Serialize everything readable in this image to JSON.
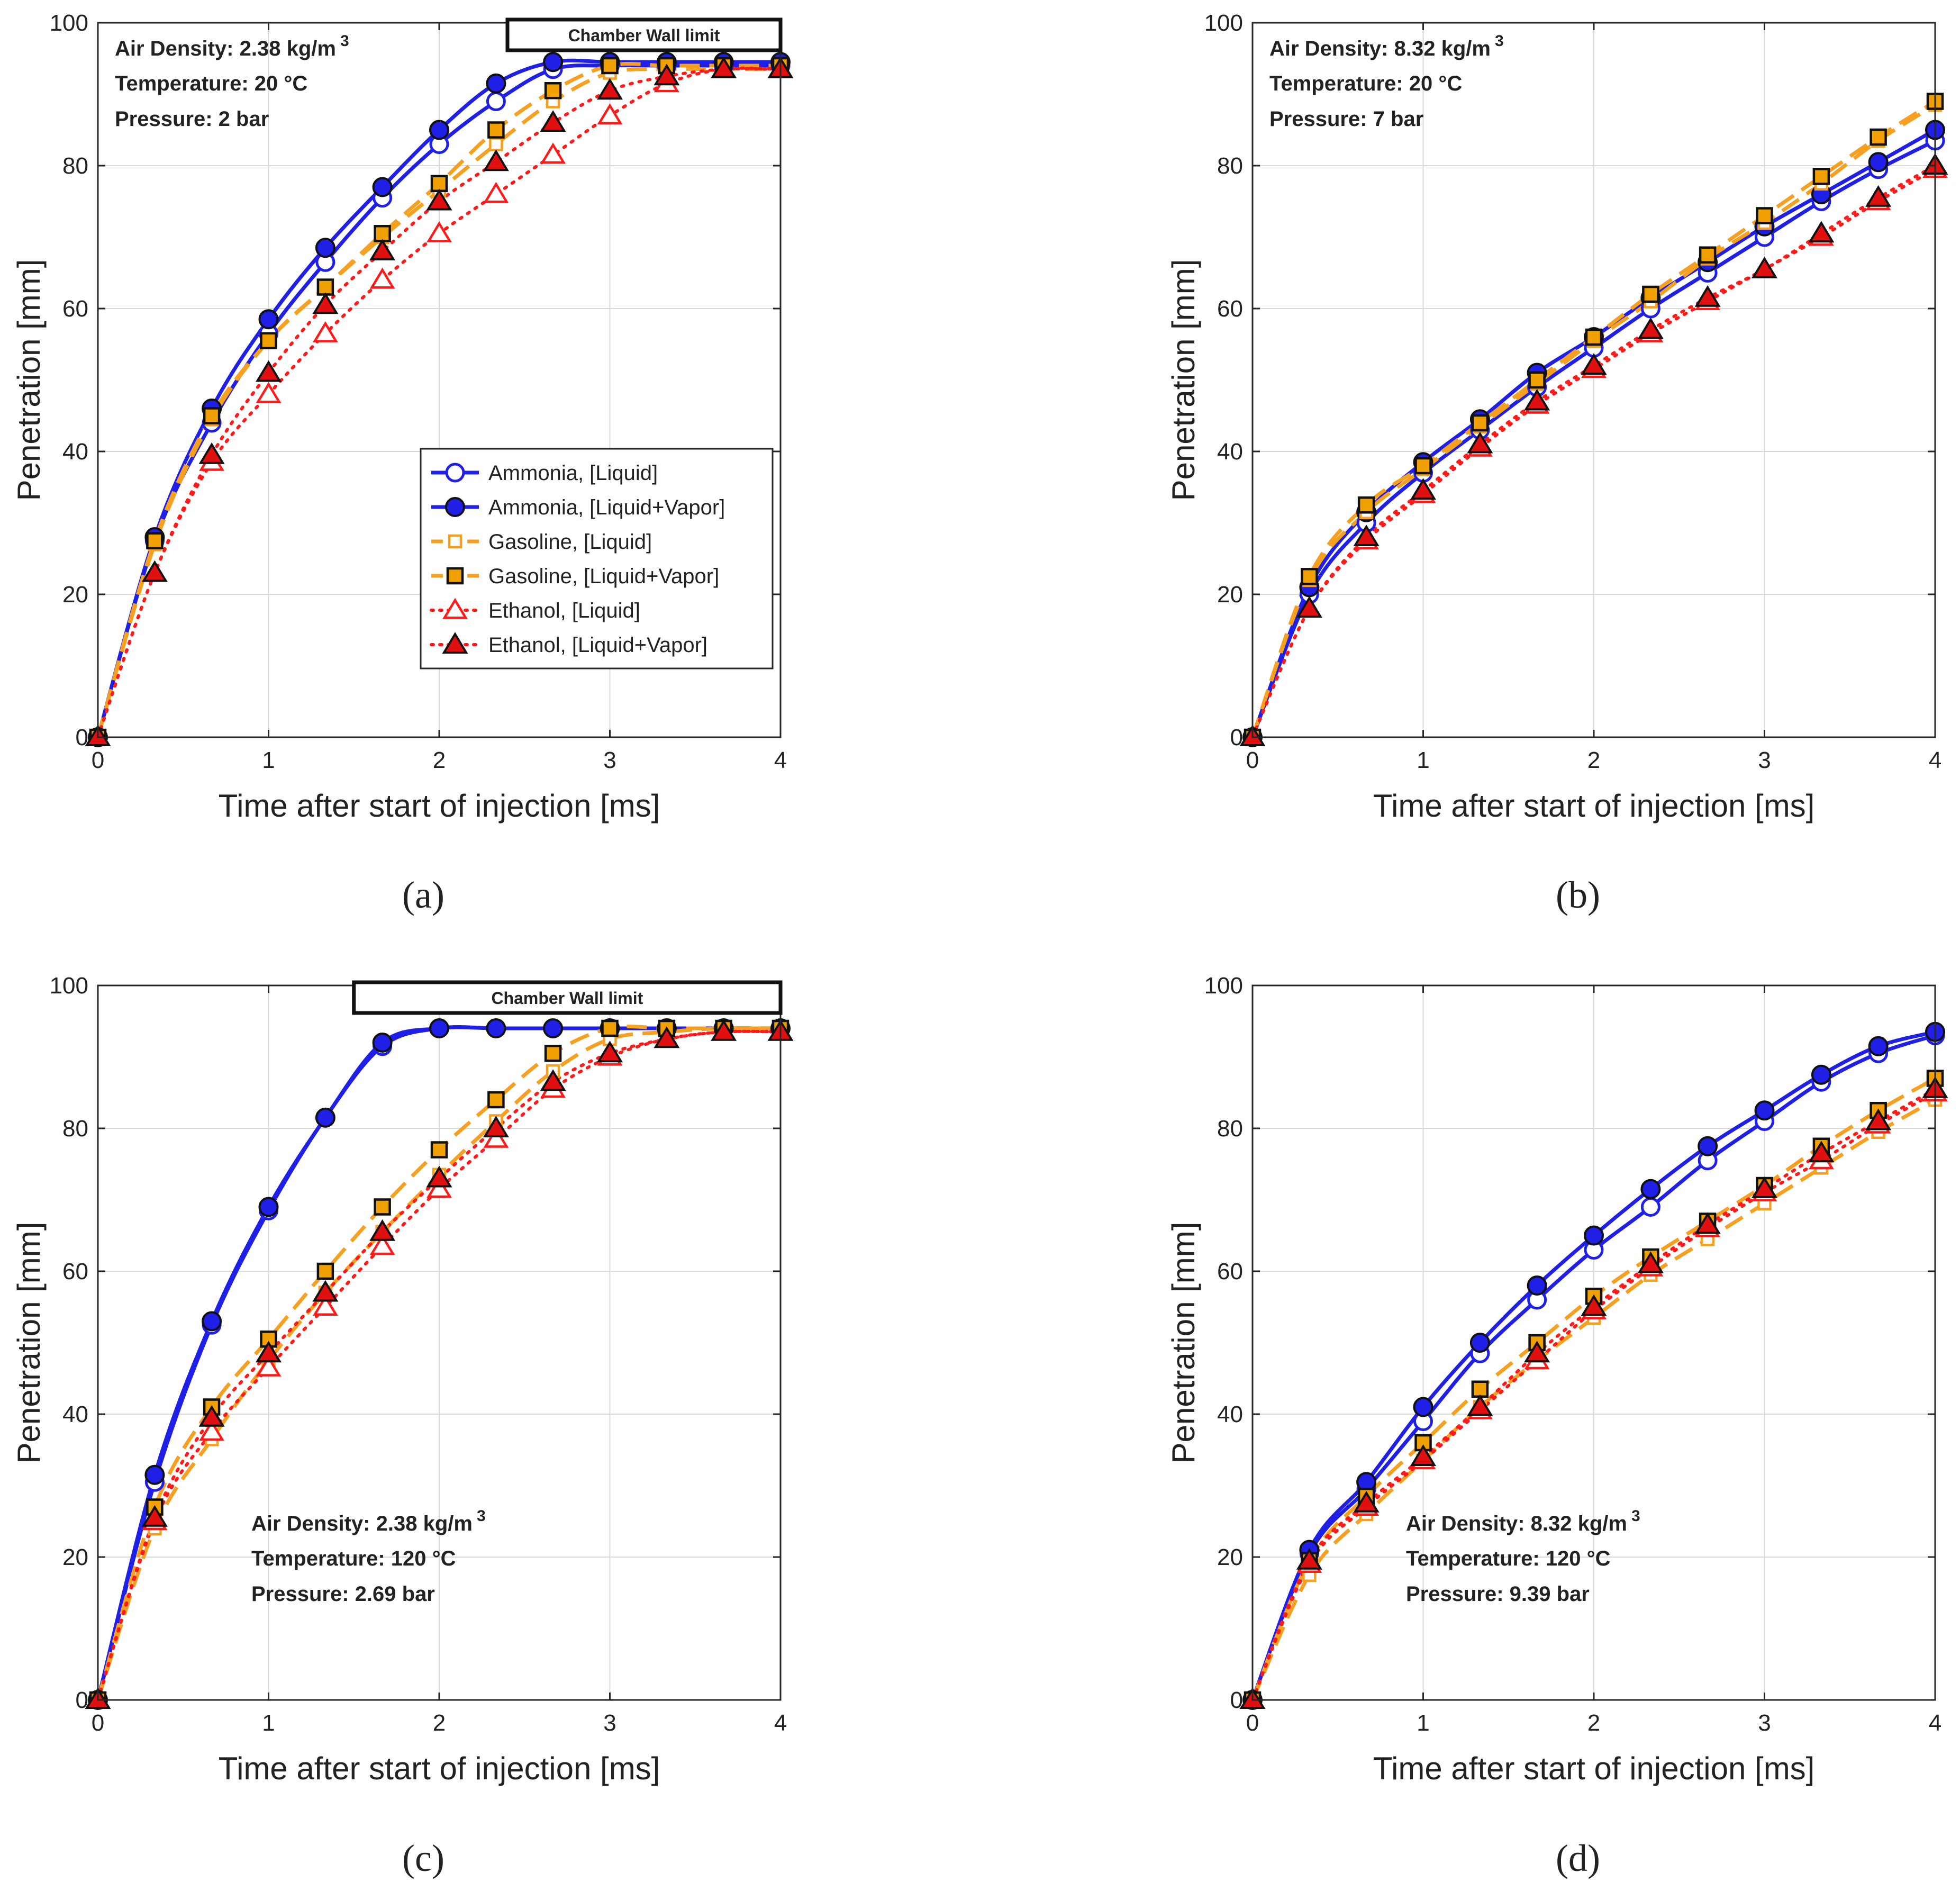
{
  "figure": {
    "colors": {
      "ammonia": "#1f1fe6",
      "gasoline": "#f5a020",
      "gasoline_marker": "#f0a000",
      "ethanol": "#ff1a1a",
      "ethanol_marker": "#e01010",
      "marker_edge": "#111111",
      "grid": "#d9d9d9",
      "axes": "#262626"
    }
  },
  "chart_data": [
    {
      "type": "line",
      "panel_label": "(a)",
      "xlabel": "Time after start of injection [ms]",
      "ylabel": "Penetration [mm]",
      "xlim": [
        0,
        4
      ],
      "ylim": [
        0,
        100
      ],
      "xticks": [
        0,
        1,
        2,
        3,
        4
      ],
      "yticks": [
        0,
        20,
        40,
        60,
        80,
        100
      ],
      "grid": true,
      "info_position": "top-left",
      "info": {
        "air_density": "Air Density: 2.38 kg/m",
        "air_density_sup": "3",
        "temperature": "Temperature: 20 °C",
        "pressure": "Pressure: 2 bar"
      },
      "chamber_wall_label": "Chamber Wall limit",
      "chamber_wall_x": [
        2.4,
        4.0
      ],
      "legend": true,
      "x": [
        0,
        0.333,
        0.667,
        1.0,
        1.333,
        1.667,
        2.0,
        2.333,
        2.667,
        3.0,
        3.333,
        3.667,
        4.0
      ],
      "series": [
        {
          "name": "Ammonia, [Liquid]",
          "fuel": "ammonia",
          "marker": "circle-open",
          "values": [
            0,
            27.5,
            44,
            56.5,
            66.5,
            75.5,
            83,
            89,
            93.5,
            94,
            94,
            94,
            94
          ]
        },
        {
          "name": "Ammonia, [Liquid+Vapor]",
          "fuel": "ammonia",
          "marker": "circle-filled",
          "values": [
            0,
            28,
            46,
            58.5,
            68.5,
            77,
            85,
            91.5,
            94.5,
            94.5,
            94.5,
            94.5,
            94.5
          ]
        },
        {
          "name": "Gasoline, [Liquid]",
          "fuel": "gasoline",
          "marker": "square-open",
          "values": [
            0,
            27,
            44.5,
            55.5,
            63,
            70,
            76.5,
            83,
            89,
            93,
            93.5,
            93.5,
            93.5
          ]
        },
        {
          "name": "Gasoline, [Liquid+Vapor]",
          "fuel": "gasoline",
          "marker": "square-filled",
          "values": [
            0,
            27.5,
            45,
            55.5,
            63,
            70.5,
            77.5,
            85,
            90.5,
            94,
            94,
            94,
            94
          ]
        },
        {
          "name": "Ethanol, [Liquid]",
          "fuel": "ethanol",
          "marker": "triangle-open",
          "values": [
            0,
            23,
            38.5,
            48,
            56.5,
            64,
            70.5,
            76,
            81.5,
            87,
            91.5,
            93.5,
            93.5
          ]
        },
        {
          "name": "Ethanol, [Liquid+Vapor]",
          "fuel": "ethanol",
          "marker": "triangle-filled",
          "values": [
            0,
            23,
            39.5,
            51,
            60.5,
            68,
            75,
            80.5,
            86,
            90.5,
            92.5,
            93.5,
            93.5
          ]
        }
      ]
    },
    {
      "type": "line",
      "panel_label": "(b)",
      "xlabel": "Time after start of injection [ms]",
      "ylabel": "Penetration [mm]",
      "xlim": [
        0,
        4
      ],
      "ylim": [
        0,
        100
      ],
      "xticks": [
        0,
        1,
        2,
        3,
        4
      ],
      "yticks": [
        0,
        20,
        40,
        60,
        80,
        100
      ],
      "grid": true,
      "info_position": "top-left",
      "info": {
        "air_density": "Air Density: 8.32 kg/m",
        "air_density_sup": "3",
        "temperature": "Temperature: 20 °C",
        "pressure": "Pressure: 7 bar"
      },
      "legend": false,
      "x": [
        0,
        0.333,
        0.667,
        1.0,
        1.333,
        1.667,
        2.0,
        2.333,
        2.667,
        3.0,
        3.333,
        3.667,
        4.0
      ],
      "series": [
        {
          "name": "Ammonia, [Liquid]",
          "fuel": "ammonia",
          "marker": "circle-open",
          "values": [
            0,
            20,
            30,
            37,
            43,
            49,
            54.5,
            60,
            65,
            70,
            75,
            79.5,
            83.5
          ]
        },
        {
          "name": "Ammonia, [Liquid+Vapor]",
          "fuel": "ammonia",
          "marker": "circle-filled",
          "values": [
            0,
            21,
            31.5,
            38.5,
            44.5,
            51,
            56,
            61.5,
            66.5,
            71.5,
            76,
            80.5,
            85
          ]
        },
        {
          "name": "Gasoline, [Liquid]",
          "fuel": "gasoline",
          "marker": "square-open",
          "values": [
            0,
            22,
            31.5,
            37.5,
            43.5,
            49.5,
            55.5,
            61,
            67,
            72,
            77.5,
            83.5,
            88.5
          ]
        },
        {
          "name": "Gasoline, [Liquid+Vapor]",
          "fuel": "gasoline",
          "marker": "square-filled",
          "values": [
            0,
            22.5,
            32.5,
            38,
            44,
            50,
            56,
            62,
            67.5,
            73,
            78.5,
            84,
            89
          ]
        },
        {
          "name": "Ethanol, [Liquid]",
          "fuel": "ethanol",
          "marker": "triangle-open",
          "values": [
            0,
            18,
            27.5,
            34,
            40.5,
            46.5,
            51.5,
            56.5,
            61,
            65.5,
            70,
            75,
            79.5
          ]
        },
        {
          "name": "Ethanol, [Liquid+Vapor]",
          "fuel": "ethanol",
          "marker": "triangle-filled",
          "values": [
            0,
            18,
            28,
            34.5,
            41,
            47,
            52,
            57,
            61.5,
            65.5,
            70.5,
            75.5,
            80
          ]
        }
      ]
    },
    {
      "type": "line",
      "panel_label": "(c)",
      "xlabel": "Time after start of injection [ms]",
      "ylabel": "Penetration [mm]",
      "xlim": [
        0,
        4
      ],
      "ylim": [
        0,
        100
      ],
      "xticks": [
        0,
        1,
        2,
        3,
        4
      ],
      "yticks": [
        0,
        20,
        40,
        60,
        80,
        100
      ],
      "grid": true,
      "info_position": "bottom-left",
      "info": {
        "air_density": "Air Density: 2.38 kg/m",
        "air_density_sup": "3",
        "temperature": "Temperature: 120 °C",
        "pressure": "Pressure: 2.69 bar"
      },
      "chamber_wall_label": "Chamber Wall limit",
      "chamber_wall_x": [
        1.5,
        4.0
      ],
      "legend": false,
      "x": [
        0,
        0.333,
        0.667,
        1.0,
        1.333,
        1.667,
        2.0,
        2.333,
        2.667,
        3.0,
        3.333,
        3.667,
        4.0
      ],
      "series": [
        {
          "name": "Ammonia, [Liquid]",
          "fuel": "ammonia",
          "marker": "circle-open",
          "values": [
            0,
            30.5,
            52.5,
            68.5,
            81.5,
            91.5,
            94,
            94,
            94,
            94,
            94,
            94,
            94
          ]
        },
        {
          "name": "Ammonia, [Liquid+Vapor]",
          "fuel": "ammonia",
          "marker": "circle-filled",
          "values": [
            0,
            31.5,
            53,
            69,
            81.5,
            92,
            94,
            94,
            94,
            94,
            94,
            94,
            94
          ]
        },
        {
          "name": "Gasoline, [Liquid]",
          "fuel": "gasoline",
          "marker": "square-open",
          "values": [
            0,
            24,
            36.5,
            47.5,
            57,
            65.5,
            73.5,
            81,
            88,
            92.5,
            93.5,
            94,
            94
          ]
        },
        {
          "name": "Gasoline, [Liquid+Vapor]",
          "fuel": "gasoline",
          "marker": "square-filled",
          "values": [
            0,
            27,
            41,
            50.5,
            60,
            69,
            77,
            84,
            90.5,
            94,
            94,
            94,
            94
          ]
        },
        {
          "name": "Ethanol, [Liquid]",
          "fuel": "ethanol",
          "marker": "triangle-open",
          "values": [
            0,
            25,
            37.5,
            46.5,
            55,
            63.5,
            71.5,
            78.5,
            85.5,
            90,
            92.5,
            93.5,
            93.5
          ]
        },
        {
          "name": "Ethanol, [Liquid+Vapor]",
          "fuel": "ethanol",
          "marker": "triangle-filled",
          "values": [
            0,
            25.5,
            39.5,
            48.5,
            57,
            65.5,
            73,
            80,
            86.5,
            90.5,
            92.5,
            93.5,
            93.5
          ]
        }
      ]
    },
    {
      "type": "line",
      "panel_label": "(d)",
      "xlabel": "Time after start of injection [ms]",
      "ylabel": "Penetration [mm]",
      "xlim": [
        0,
        4
      ],
      "ylim": [
        0,
        100
      ],
      "xticks": [
        0,
        1,
        2,
        3,
        4
      ],
      "yticks": [
        0,
        20,
        40,
        60,
        80,
        100
      ],
      "grid": true,
      "info_position": "bottom-left",
      "info": {
        "air_density": "Air Density: 8.32 kg/m",
        "air_density_sup": "3",
        "temperature": "Temperature: 120 °C",
        "pressure": "Pressure: 9.39 bar"
      },
      "legend": false,
      "x": [
        0,
        0.333,
        0.667,
        1.0,
        1.333,
        1.667,
        2.0,
        2.333,
        2.667,
        3.0,
        3.333,
        3.667,
        4.0
      ],
      "series": [
        {
          "name": "Ammonia, [Liquid]",
          "fuel": "ammonia",
          "marker": "circle-open",
          "values": [
            0,
            20.5,
            29.5,
            39,
            48.5,
            56,
            63,
            69,
            75.5,
            81,
            86.5,
            90.5,
            93
          ]
        },
        {
          "name": "Ammonia, [Liquid+Vapor]",
          "fuel": "ammonia",
          "marker": "circle-filled",
          "values": [
            0,
            21,
            30.5,
            41,
            50,
            58,
            65,
            71.5,
            77.5,
            82.5,
            87.5,
            91.5,
            93.5
          ]
        },
        {
          "name": "Gasoline, [Liquid]",
          "fuel": "gasoline",
          "marker": "square-open",
          "values": [
            0,
            17.5,
            26,
            33.5,
            41,
            47.5,
            53.5,
            59.5,
            64.5,
            69.5,
            74.5,
            79.5,
            84
          ]
        },
        {
          "name": "Gasoline, [Liquid+Vapor]",
          "fuel": "gasoline",
          "marker": "square-filled",
          "values": [
            0,
            19.5,
            28.5,
            36,
            43.5,
            50,
            56.5,
            62,
            67,
            72,
            77.5,
            82.5,
            87
          ]
        },
        {
          "name": "Ethanol, [Liquid]",
          "fuel": "ethanol",
          "marker": "triangle-open",
          "values": [
            0,
            19,
            27,
            33.5,
            40.5,
            47.5,
            54.5,
            60.5,
            66,
            71,
            75.5,
            80.5,
            85
          ]
        },
        {
          "name": "Ethanol, [Liquid+Vapor]",
          "fuel": "ethanol",
          "marker": "triangle-filled",
          "values": [
            0,
            19.5,
            27.5,
            34,
            41,
            48.5,
            55,
            61,
            66.5,
            71.5,
            76.5,
            81,
            85.5
          ]
        }
      ]
    }
  ]
}
